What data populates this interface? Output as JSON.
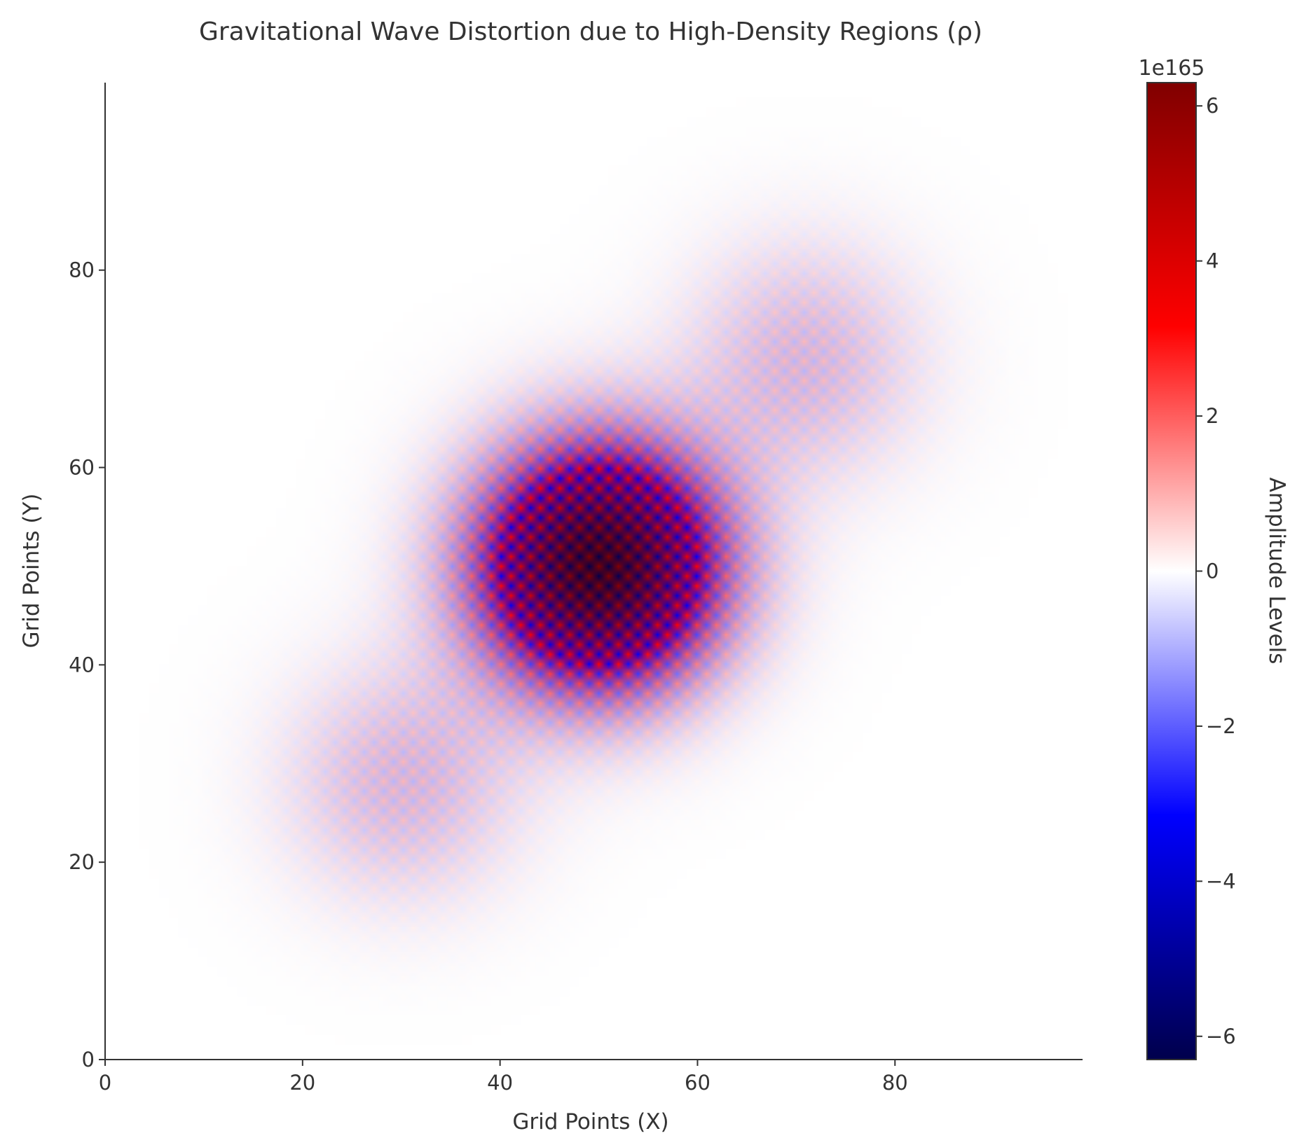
{
  "chart_data": {
    "type": "heatmap",
    "title": "Gravitational Wave Distortion due to High-Density Regions (ρ)",
    "xlabel": "Grid Points (X)",
    "ylabel": "Grid Points (Y)",
    "xlim": [
      0,
      99
    ],
    "ylim": [
      0,
      99
    ],
    "xticks": [
      0,
      20,
      40,
      60,
      80
    ],
    "yticks": [
      0,
      20,
      40,
      60,
      80
    ],
    "grid": false,
    "colorbar": {
      "label": "Amplitude Levels",
      "offset_text": "1e165",
      "range": [
        -6.3,
        6.3
      ],
      "ticks": [
        -6,
        -4,
        -2,
        0,
        2,
        4,
        6
      ],
      "colormap": "seismic",
      "colors": [
        "#00004c",
        "#0000ff",
        "#ffffff",
        "#ff0000",
        "#800000"
      ]
    },
    "field": {
      "grid_size": 100,
      "pattern": "checkerboard sign alternation modulated by gaussian envelopes",
      "sources": [
        {
          "x": 50,
          "y": 50,
          "amplitude": 6.3,
          "sigma": 8.5
        },
        {
          "x": 30,
          "y": 28,
          "amplitude": 0.9,
          "sigma": 8.5
        },
        {
          "x": 71,
          "y": 71,
          "amplitude": 0.9,
          "sigma": 8.5
        }
      ],
      "units_multiplier": "1e165"
    }
  }
}
